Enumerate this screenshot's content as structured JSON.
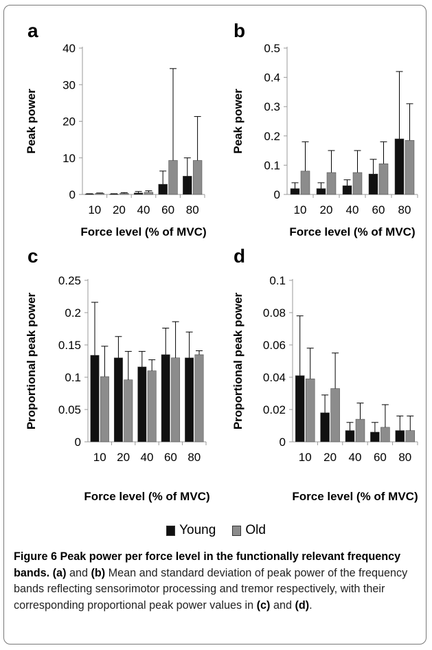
{
  "legend": {
    "young_label": "Young",
    "old_label": "Old",
    "young_color": "#111111",
    "old_color": "#8c8c8c"
  },
  "caption": {
    "figure_label": "Figure 6",
    "title": "Peak power per force level in the functionally relevant frequency bands.",
    "part_a": "(a)",
    "and_1": " and ",
    "part_b": "(b)",
    "text_1": " Mean and standard deviation of peak power of the frequency bands reflecting sensorimotor processing and tremor respectively, with their corresponding proportional peak power values in ",
    "part_c": "(c)",
    "and_2": " and ",
    "part_d": "(d)",
    "end": "."
  },
  "chart_data": [
    {
      "panel": "a",
      "type": "bar",
      "categories": [
        "10",
        "20",
        "40",
        "60",
        "80"
      ],
      "xlabel": "Force level (% of MVC)",
      "ylabel": "Peak power",
      "ylim": [
        0,
        40
      ],
      "yticks": [
        0,
        10,
        20,
        30,
        40
      ],
      "ytick_labels": [
        "0",
        "10",
        "20",
        "30",
        "40"
      ],
      "series": [
        {
          "name": "Young",
          "values": [
            0.1,
            0.1,
            0.4,
            2.8,
            5.0
          ],
          "errors": [
            0.1,
            0.1,
            0.4,
            3.6,
            5.0
          ]
        },
        {
          "name": "Old",
          "values": [
            0.3,
            0.3,
            0.6,
            9.3,
            9.3
          ],
          "errors": [
            0.1,
            0.2,
            0.4,
            25.1,
            12.0
          ]
        }
      ]
    },
    {
      "panel": "b",
      "type": "bar",
      "categories": [
        "10",
        "20",
        "40",
        "60",
        "80"
      ],
      "xlabel": "Force level (% of MVC)",
      "ylabel": "Peak power",
      "ylim": [
        0,
        0.5
      ],
      "yticks": [
        0,
        0.1,
        0.2,
        0.3,
        0.4,
        0.5
      ],
      "ytick_labels": [
        "0",
        "0.1",
        "0.2",
        "0.3",
        "0.4",
        "0.5"
      ],
      "series": [
        {
          "name": "Young",
          "values": [
            0.02,
            0.02,
            0.03,
            0.07,
            0.19
          ],
          "errors": [
            0.02,
            0.02,
            0.02,
            0.05,
            0.23
          ]
        },
        {
          "name": "Old",
          "values": [
            0.08,
            0.075,
            0.075,
            0.105,
            0.185
          ],
          "errors": [
            0.1,
            0.075,
            0.075,
            0.075,
            0.125
          ]
        }
      ]
    },
    {
      "panel": "c",
      "type": "bar",
      "categories": [
        "10",
        "20",
        "40",
        "60",
        "80"
      ],
      "xlabel": "Force level (% of MVC)",
      "ylabel": "Proportional  peak power",
      "ylim": [
        0,
        0.25
      ],
      "yticks": [
        0,
        0.05,
        0.1,
        0.15,
        0.2,
        0.25
      ],
      "ytick_labels": [
        "0",
        "0.05",
        "0.1",
        "0.15",
        "0.2",
        "0.25"
      ],
      "series": [
        {
          "name": "Young",
          "values": [
            0.134,
            0.13,
            0.116,
            0.135,
            0.13
          ],
          "errors": [
            0.082,
            0.033,
            0.024,
            0.041,
            0.04
          ]
        },
        {
          "name": "Old",
          "values": [
            0.101,
            0.096,
            0.11,
            0.13,
            0.135
          ],
          "errors": [
            0.047,
            0.044,
            0.017,
            0.056,
            0.006
          ]
        }
      ]
    },
    {
      "panel": "d",
      "type": "bar",
      "categories": [
        "10",
        "20",
        "40",
        "60",
        "80"
      ],
      "xlabel": "Force level (% of MVC)",
      "ylabel": "Proportional  peak power",
      "ylim": [
        0,
        0.1
      ],
      "yticks": [
        0,
        0.02,
        0.04,
        0.06,
        0.08,
        0.1
      ],
      "ytick_labels": [
        "0",
        "0.02",
        "0.04",
        "0.06",
        "0.08",
        "0.1"
      ],
      "series": [
        {
          "name": "Young",
          "values": [
            0.041,
            0.018,
            0.007,
            0.006,
            0.007
          ],
          "errors": [
            0.037,
            0.011,
            0.005,
            0.006,
            0.009
          ]
        },
        {
          "name": "Old",
          "values": [
            0.039,
            0.033,
            0.014,
            0.009,
            0.007
          ],
          "errors": [
            0.019,
            0.022,
            0.01,
            0.014,
            0.009
          ]
        }
      ]
    }
  ]
}
